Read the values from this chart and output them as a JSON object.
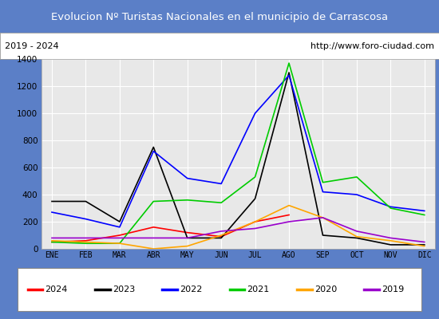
{
  "title": "Evolucion Nº Turistas Nacionales en el municipio de Carrascosa",
  "subtitle_left": "2019 - 2024",
  "subtitle_right": "http://www.foro-ciudad.com",
  "months": [
    "ENE",
    "FEB",
    "MAR",
    "ABR",
    "MAY",
    "JUN",
    "JUL",
    "AGO",
    "SEP",
    "OCT",
    "NOV",
    "DIC"
  ],
  "series": {
    "2024": [
      50,
      60,
      100,
      160,
      120,
      90,
      200,
      250,
      null,
      null,
      null,
      null
    ],
    "2023": [
      350,
      350,
      200,
      750,
      80,
      80,
      370,
      1300,
      100,
      80,
      30,
      30
    ],
    "2022": [
      270,
      220,
      160,
      720,
      520,
      480,
      1000,
      1280,
      420,
      400,
      310,
      280
    ],
    "2021": [
      50,
      40,
      40,
      350,
      360,
      340,
      530,
      1370,
      490,
      530,
      300,
      250
    ],
    "2020": [
      60,
      50,
      40,
      0,
      20,
      100,
      200,
      320,
      230,
      90,
      60,
      20
    ],
    "2019": [
      80,
      80,
      80,
      80,
      80,
      130,
      150,
      200,
      230,
      130,
      80,
      50
    ]
  },
  "colors": {
    "2024": "#ff0000",
    "2023": "#000000",
    "2022": "#0000ff",
    "2021": "#00cc00",
    "2020": "#ffa500",
    "2019": "#9900cc"
  },
  "ylim": [
    0,
    1400
  ],
  "yticks": [
    0,
    200,
    400,
    600,
    800,
    1000,
    1200,
    1400
  ],
  "title_bg_color": "#4472c4",
  "title_color": "#ffffff",
  "plot_bg_color": "#e8e8e8",
  "grid_color": "#ffffff",
  "outer_bg_color": "#5b7fc7",
  "legend_order": [
    "2024",
    "2023",
    "2022",
    "2021",
    "2020",
    "2019"
  ]
}
